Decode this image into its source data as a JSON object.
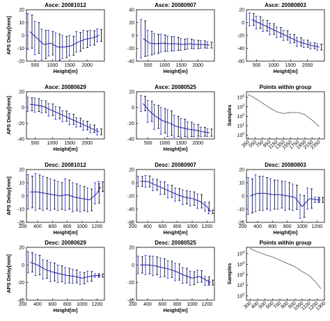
{
  "colors": {
    "mean_line": "#1f1fa8",
    "error_bar_a": "#2f3bd6",
    "error_bar_b": "#111111"
  },
  "chart_data": [
    {
      "type": "line",
      "title": "Asce: 20081012",
      "xlabel": "Height[m]",
      "ylabel": "APS Delay[mm]",
      "xlim": [
        250,
        2500
      ],
      "ylim": [
        -20,
        20
      ],
      "xticks": [
        "500",
        "1000",
        "1500",
        "2000"
      ],
      "yticks": [
        "20",
        "10",
        "0",
        "-10",
        "-20"
      ],
      "x": [
        350,
        550,
        750,
        950,
        1150,
        1350,
        1550,
        1750,
        1950,
        2150,
        2350
      ],
      "mean": [
        3,
        -2,
        -7,
        -6,
        -9,
        -9,
        -8,
        -5,
        -3,
        -2,
        0
      ],
      "err": [
        14,
        13,
        12,
        10,
        11,
        9,
        8,
        8,
        7,
        6,
        5
      ]
    },
    {
      "type": "line",
      "title": "Asce: 20080907",
      "xlabel": "Height[m]",
      "ylabel": "",
      "xlim": [
        150,
        2500
      ],
      "ylim": [
        -40,
        40
      ],
      "xticks": [
        "500",
        "1000",
        "1500",
        "2000"
      ],
      "yticks": [
        "40",
        "20",
        "0",
        "-20",
        "-40"
      ],
      "x": [
        350,
        550,
        750,
        950,
        1150,
        1350,
        1550,
        1750,
        1950,
        2150,
        2350
      ],
      "mean": [
        -5,
        -12,
        -13,
        -12,
        -13,
        -13,
        -14,
        -13,
        -14,
        -14,
        -15
      ],
      "err": [
        30,
        20,
        16,
        14,
        12,
        11,
        9,
        8,
        7,
        6,
        5
      ]
    },
    {
      "type": "line",
      "title": "Asce: 20080803",
      "xlabel": "Height[m]",
      "ylabel": "",
      "xlim": [
        200,
        2500
      ],
      "ylim": [
        -60,
        20
      ],
      "xticks": [
        "500",
        "1000",
        "1500",
        "2000"
      ],
      "yticks": [
        "20",
        "0",
        "-20",
        "-40",
        "-60"
      ],
      "x": [
        350,
        550,
        750,
        950,
        1150,
        1350,
        1550,
        1750,
        1950,
        2150,
        2350
      ],
      "mean": [
        5,
        0,
        -5,
        -10,
        -15,
        -20,
        -25,
        -30,
        -33,
        -36,
        -38
      ],
      "err": [
        10,
        10,
        9,
        9,
        8,
        8,
        7,
        7,
        6,
        5,
        5
      ]
    },
    {
      "type": "line",
      "title": "Asce: 20080629",
      "xlabel": "Height[m]",
      "ylabel": "APS Delay[mm]",
      "xlim": [
        250,
        2500
      ],
      "ylim": [
        -40,
        20
      ],
      "xticks": [
        "500",
        "1000",
        "1500",
        "2000"
      ],
      "yticks": [
        "20",
        "0",
        "-20",
        "-40"
      ],
      "x": [
        350,
        550,
        750,
        950,
        1150,
        1350,
        1550,
        1750,
        1950,
        2150,
        2350
      ],
      "mean": [
        4,
        3,
        1,
        -3,
        -7,
        -11,
        -15,
        -19,
        -23,
        -27,
        -31
      ],
      "err": [
        9,
        9,
        8,
        8,
        8,
        7,
        7,
        6,
        6,
        5,
        4
      ]
    },
    {
      "type": "line",
      "title": "Asce: 20080525",
      "xlabel": "Height[m]",
      "ylabel": "",
      "xlim": [
        150,
        2500
      ],
      "ylim": [
        -40,
        20
      ],
      "xticks": [
        "500",
        "1000",
        "1500",
        "2000"
      ],
      "yticks": [
        "20",
        "0",
        "-20",
        "-40"
      ],
      "x": [
        350,
        550,
        750,
        950,
        1150,
        1350,
        1550,
        1750,
        1950,
        2150,
        2350
      ],
      "mean": [
        5,
        -5,
        -12,
        -17,
        -20,
        -24,
        -26,
        -28,
        -29,
        -31,
        -32
      ],
      "err": [
        10,
        14,
        16,
        17,
        17,
        14,
        12,
        10,
        8,
        6,
        5
      ]
    },
    {
      "type": "line",
      "title": "Points within group",
      "xlabel": "",
      "ylabel": "Samples",
      "log_y": true,
      "xlim": [
        300,
        2500
      ],
      "ylim_exponent": [
        -0.4,
        4.6
      ],
      "xticks": [
        "350",
        "550",
        "750",
        "950",
        "1150",
        "1350",
        "1550",
        "1750",
        "1950",
        "2150",
        "2350"
      ],
      "yticks": [
        "10^4",
        "10^3",
        "10^2",
        "10^1",
        "10^0"
      ],
      "x": [
        350,
        550,
        750,
        950,
        1150,
        1350,
        1550,
        1750,
        1950,
        2150,
        2350
      ],
      "y": [
        20000,
        8000,
        2500,
        800,
        300,
        200,
        250,
        250,
        150,
        40,
        8
      ]
    },
    {
      "type": "line",
      "title": "Desc: 20081012",
      "xlabel": "Height[m]",
      "ylabel": "APS Delay[mm]",
      "xlim": [
        250,
        1300
      ],
      "ylim": [
        -20,
        20
      ],
      "xticks": [
        "200",
        "400",
        "600",
        "800",
        "1000",
        "1200"
      ],
      "yticks": [
        "20",
        "10",
        "0",
        "-10",
        "-20"
      ],
      "x": [
        300,
        400,
        500,
        600,
        700,
        800,
        900,
        1000,
        1100,
        1200,
        1250
      ],
      "mean": [
        3,
        3,
        2,
        1,
        0,
        1,
        -1,
        -2,
        -3,
        2,
        7
      ],
      "err": [
        13,
        14,
        13,
        12,
        11,
        12,
        11,
        10,
        9,
        8,
        4
      ]
    },
    {
      "type": "line",
      "title": "Desc: 20080907",
      "xlabel": "Height[m]",
      "ylabel": "",
      "xlim": [
        250,
        1300
      ],
      "ylim": [
        -60,
        20
      ],
      "xticks": [
        "200",
        "400",
        "600",
        "800",
        "1000",
        "1200"
      ],
      "yticks": [
        "20",
        "0",
        "-20",
        "-40",
        "-60"
      ],
      "x": [
        300,
        400,
        500,
        600,
        700,
        800,
        900,
        1000,
        1100,
        1200,
        1250
      ],
      "mean": [
        2,
        2,
        -3,
        -8,
        -13,
        -18,
        -22,
        -24,
        -28,
        -36,
        -44
      ],
      "err": [
        8,
        9,
        9,
        10,
        10,
        10,
        11,
        11,
        11,
        7,
        3
      ]
    },
    {
      "type": "line",
      "title": "Desc: 20080803",
      "xlabel": "Height[m]",
      "ylabel": "",
      "xlim": [
        250,
        1300
      ],
      "ylim": [
        -20,
        20
      ],
      "xticks": [
        "200",
        "400",
        "600",
        "800",
        "1000",
        "1200"
      ],
      "yticks": [
        "20",
        "10",
        "0",
        "-10",
        "-20"
      ],
      "x": [
        300,
        400,
        500,
        600,
        700,
        800,
        900,
        1000,
        1100,
        1200,
        1250
      ],
      "mean": [
        0,
        2,
        2,
        1,
        1,
        0,
        -1,
        -8,
        -2,
        -3,
        -3
      ],
      "err": [
        14,
        14,
        13,
        12,
        11,
        11,
        10,
        9,
        8,
        2,
        2
      ]
    },
    {
      "type": "line",
      "title": "Desc: 20080629",
      "xlabel": "Height[m]",
      "ylabel": "APS Delay[mm]",
      "xlim": [
        250,
        1300
      ],
      "ylim": [
        -40,
        20
      ],
      "xticks": [
        "200",
        "400",
        "600",
        "800",
        "1000",
        "1200"
      ],
      "yticks": [
        "20",
        "0",
        "-20",
        "-40"
      ],
      "x": [
        300,
        400,
        500,
        600,
        700,
        800,
        900,
        1000,
        1100,
        1200,
        1250
      ],
      "mean": [
        3,
        0,
        -5,
        -8,
        -10,
        -12,
        -13,
        -15,
        -13,
        -12,
        -12
      ],
      "err": [
        12,
        12,
        11,
        11,
        10,
        9,
        8,
        7,
        6,
        2,
        2
      ]
    },
    {
      "type": "line",
      "title": "Desc: 20080525",
      "xlabel": "Height[m]",
      "ylabel": "",
      "xlim": [
        250,
        1300
      ],
      "ylim": [
        -40,
        20
      ],
      "xticks": [
        "200",
        "400",
        "600",
        "800",
        "1000",
        "1200"
      ],
      "yticks": [
        "20",
        "0",
        "-20",
        "-40"
      ],
      "x": [
        300,
        400,
        500,
        600,
        700,
        800,
        900,
        1000,
        1100,
        1200,
        1250
      ],
      "mean": [
        0,
        0,
        -1,
        -3,
        -5,
        -8,
        -12,
        -15,
        -13,
        -18,
        -20
      ],
      "err": [
        10,
        11,
        11,
        11,
        10,
        10,
        9,
        8,
        7,
        5,
        3
      ]
    },
    {
      "type": "line",
      "title": "Points within group",
      "xlabel": "",
      "ylabel": "Samples",
      "log_y": true,
      "xlim": [
        250,
        1300
      ],
      "ylim_exponent": [
        -0.4,
        4.6
      ],
      "xticks": [
        "300",
        "400",
        "500",
        "600",
        "700",
        "800",
        "900",
        "1000",
        "1100",
        "1200",
        "1300"
      ],
      "yticks": [
        "10^4",
        "10^3",
        "10^2",
        "10^1",
        "10^0"
      ],
      "x": [
        300,
        400,
        500,
        600,
        700,
        800,
        900,
        1000,
        1100,
        1200,
        1250
      ],
      "y": [
        30000,
        15000,
        8000,
        5000,
        2500,
        1200,
        600,
        200,
        80,
        15,
        5
      ]
    }
  ]
}
